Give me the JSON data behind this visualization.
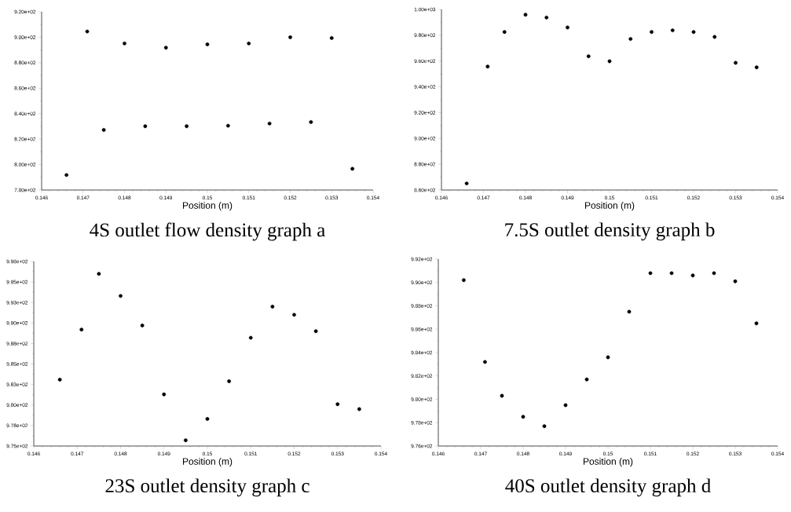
{
  "chart_data": [
    {
      "type": "scatter",
      "title": "4S outlet flow density graph a",
      "xlabel": "Position (m)",
      "marker": "circle",
      "color": "#000000",
      "x": [
        0.1466,
        0.1471,
        0.1475,
        0.148,
        0.1485,
        0.149,
        0.1495,
        0.15,
        0.1505,
        0.151,
        0.1515,
        0.152,
        0.1525,
        0.153,
        0.1535
      ],
      "values": [
        791.8,
        904.5,
        827.2,
        895.1,
        830.1,
        891.8,
        830.1,
        894.4,
        830.5,
        895.1,
        832.2,
        900.0,
        833.4,
        899.4,
        796.7
      ],
      "xlim": [
        0.146,
        0.154
      ],
      "xticks": [
        0.146,
        0.147,
        0.148,
        0.149,
        0.15,
        0.151,
        0.152,
        0.153,
        0.154
      ],
      "ylim": [
        780,
        920
      ],
      "yticks": [
        {
          "value": 780,
          "label": "7.80e+02"
        },
        {
          "value": 800,
          "label": "8.00e+02"
        },
        {
          "value": 820,
          "label": "8.20e+02"
        },
        {
          "value": 840,
          "label": "8.40e+02"
        },
        {
          "value": 860,
          "label": "8.60e+02"
        },
        {
          "value": 880,
          "label": "8.80e+02"
        },
        {
          "value": 900,
          "label": "9.00e+02"
        },
        {
          "value": 920,
          "label": "9.20e+02"
        }
      ]
    },
    {
      "type": "scatter",
      "title": "7.5S outlet density graph b",
      "xlabel": "Position (m)",
      "marker": "circle",
      "color": "#000000",
      "x": [
        0.1466,
        0.1471,
        0.1475,
        0.148,
        0.1485,
        0.149,
        0.1495,
        0.15,
        0.1505,
        0.151,
        0.1515,
        0.152,
        0.1525,
        0.153,
        0.1535
      ],
      "values": [
        865.1,
        955.7,
        982.5,
        995.9,
        993.7,
        986.0,
        963.7,
        959.8,
        977.1,
        982.5,
        983.8,
        982.5,
        978.7,
        958.6,
        955.1
      ],
      "xlim": [
        0.146,
        0.154
      ],
      "xticks": [
        0.146,
        0.147,
        0.148,
        0.149,
        0.15,
        0.151,
        0.152,
        0.153,
        0.154
      ],
      "ylim": [
        860,
        1000
      ],
      "yticks": [
        {
          "value": 860,
          "label": "8.60e+02"
        },
        {
          "value": 880,
          "label": "8.80e+02"
        },
        {
          "value": 900,
          "label": "9.00e+02"
        },
        {
          "value": 920,
          "label": "9.20e+02"
        },
        {
          "value": 940,
          "label": "9.40e+02"
        },
        {
          "value": 960,
          "label": "9.60e+02"
        },
        {
          "value": 980,
          "label": "9.80e+02"
        },
        {
          "value": 1000,
          "label": "1.00e+03"
        }
      ]
    },
    {
      "type": "scatter",
      "title": "23S outlet density graph c",
      "xlabel": "Position (m)",
      "marker": "circle",
      "color": "#000000",
      "x": [
        0.1466,
        0.1471,
        0.1475,
        0.148,
        0.1485,
        0.149,
        0.1495,
        0.15,
        0.1505,
        0.151,
        0.1515,
        0.152,
        0.1525,
        0.153,
        0.1535
      ],
      "values": [
        983.1,
        989.2,
        996.0,
        993.3,
        989.7,
        981.3,
        975.7,
        978.3,
        982.9,
        988.2,
        992.0,
        991.0,
        989.0,
        980.1,
        979.5
      ],
      "xlim": [
        0.146,
        0.154
      ],
      "xticks": [
        0.146,
        0.147,
        0.148,
        0.149,
        0.15,
        0.151,
        0.152,
        0.153,
        0.154
      ],
      "ylim": [
        975,
        997.5
      ],
      "yticks": [
        {
          "value": 975,
          "label": "9.75e+02"
        },
        {
          "value": 977.5,
          "label": "9.78e+02"
        },
        {
          "value": 980,
          "label": "9.80e+02"
        },
        {
          "value": 982.5,
          "label": "9.83e+02"
        },
        {
          "value": 985,
          "label": "9.85e+02"
        },
        {
          "value": 987.5,
          "label": "9.88e+02"
        },
        {
          "value": 990,
          "label": "9.90e+02"
        },
        {
          "value": 992.5,
          "label": "9.93e+02"
        },
        {
          "value": 995,
          "label": "9.95e+02"
        },
        {
          "value": 997.5,
          "label": "9.98e+02"
        }
      ]
    },
    {
      "type": "scatter",
      "title": "40S outlet density graph d",
      "xlabel": "Position (m)",
      "marker": "circle",
      "color": "#000000",
      "x": [
        0.1466,
        0.1471,
        0.1475,
        0.148,
        0.1485,
        0.149,
        0.1495,
        0.15,
        0.1505,
        0.151,
        0.1515,
        0.152,
        0.1525,
        0.153,
        0.1535
      ],
      "values": [
        990.2,
        983.2,
        980.3,
        978.5,
        977.7,
        979.5,
        981.7,
        983.6,
        987.5,
        990.8,
        990.8,
        990.6,
        990.8,
        990.1,
        986.5
      ],
      "xlim": [
        0.146,
        0.154
      ],
      "xticks": [
        0.146,
        0.147,
        0.148,
        0.149,
        0.15,
        0.151,
        0.152,
        0.153,
        0.154
      ],
      "ylim": [
        976,
        992
      ],
      "yticks": [
        {
          "value": 976,
          "label": "9.76e+02"
        },
        {
          "value": 978,
          "label": "9.78e+02"
        },
        {
          "value": 980,
          "label": "9.80e+02"
        },
        {
          "value": 982,
          "label": "9.82e+02"
        },
        {
          "value": 984,
          "label": "9.84e+02"
        },
        {
          "value": 986,
          "label": "9.86e+02"
        },
        {
          "value": 988,
          "label": "9.88e+02"
        },
        {
          "value": 990,
          "label": "9.90e+02"
        },
        {
          "value": 992,
          "label": "9.92e+02"
        }
      ]
    }
  ]
}
